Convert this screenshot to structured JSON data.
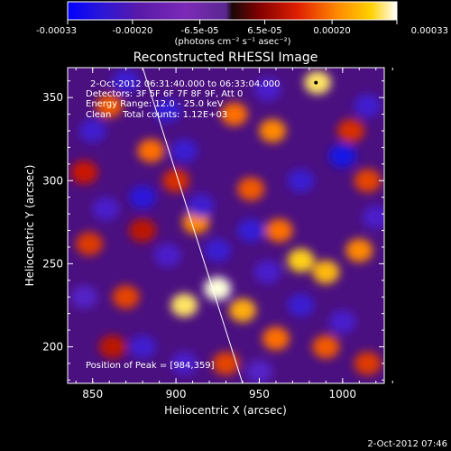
{
  "colorbar": {
    "tick_labels": [
      "-0.00033",
      "-0.00020",
      "-6.5e-05",
      "6.5e-05",
      "0.00020",
      "0.00033"
    ],
    "tick_values": [
      -0.00033,
      -0.0002,
      -6.5e-05,
      6.5e-05,
      0.0002,
      0.00033
    ],
    "range": [
      -0.00033,
      0.00033
    ],
    "units_label": "(photons cm⁻² s⁻¹ asec⁻²)"
  },
  "chart_data": {
    "type": "heatmap",
    "title": "Reconstructed RHESSI Image",
    "xlabel": "Heliocentric X (arcsec)",
    "ylabel": "Heliocentric Y (arcsec)",
    "xlim": [
      835,
      1025
    ],
    "ylim": [
      178,
      368
    ],
    "x_ticks": [
      850,
      900,
      950,
      1000
    ],
    "y_ticks": [
      200,
      250,
      300,
      350
    ],
    "x_tick_labels": [
      "850",
      "900",
      "950",
      "1000"
    ],
    "y_tick_labels": [
      "200",
      "250",
      "300",
      "350"
    ],
    "colormap": "red-temperature",
    "limb_line": [
      [
        880,
        368
      ],
      [
        940,
        178
      ]
    ],
    "peak_position": [
      984,
      359
    ],
    "annotations": [
      "2-Oct-2012 06:31:40.000 to 06:33:04.000",
      "Detectors: 3F 5F 6F 7F 8F 9F, Att 0",
      "Energy Range: 12.0 - 25.0 keV",
      "Clean    Total counts: 1.12E+03",
      "Position of Peak = [984,359]"
    ],
    "blobs": [
      {
        "x": 860,
        "y": 345,
        "v": 0.00018
      },
      {
        "x": 845,
        "y": 305,
        "v": 0.00012
      },
      {
        "x": 848,
        "y": 262,
        "v": 0.00015
      },
      {
        "x": 870,
        "y": 230,
        "v": 0.00016
      },
      {
        "x": 862,
        "y": 200,
        "v": 0.0001
      },
      {
        "x": 885,
        "y": 318,
        "v": 0.0002
      },
      {
        "x": 900,
        "y": 300,
        "v": 0.00014
      },
      {
        "x": 912,
        "y": 275,
        "v": 0.00022
      },
      {
        "x": 905,
        "y": 225,
        "v": 0.0003
      },
      {
        "x": 925,
        "y": 235,
        "v": 0.00033
      },
      {
        "x": 940,
        "y": 222,
        "v": 0.00025
      },
      {
        "x": 930,
        "y": 190,
        "v": 0.00016
      },
      {
        "x": 935,
        "y": 340,
        "v": 0.0002
      },
      {
        "x": 958,
        "y": 330,
        "v": 0.00022
      },
      {
        "x": 945,
        "y": 295,
        "v": 0.00018
      },
      {
        "x": 962,
        "y": 270,
        "v": 0.0002
      },
      {
        "x": 975,
        "y": 252,
        "v": 0.00028
      },
      {
        "x": 990,
        "y": 245,
        "v": 0.00026
      },
      {
        "x": 1010,
        "y": 258,
        "v": 0.00022
      },
      {
        "x": 985,
        "y": 359,
        "v": 0.0003
      },
      {
        "x": 1015,
        "y": 300,
        "v": 0.00016
      },
      {
        "x": 1005,
        "y": 330,
        "v": 0.00014
      },
      {
        "x": 960,
        "y": 205,
        "v": 0.0002
      },
      {
        "x": 990,
        "y": 200,
        "v": 0.00018
      },
      {
        "x": 1015,
        "y": 190,
        "v": 0.00015
      },
      {
        "x": 880,
        "y": 270,
        "v": 0.0001
      },
      {
        "x": 870,
        "y": 360,
        "v": -0.0002
      },
      {
        "x": 850,
        "y": 330,
        "v": -0.00018
      },
      {
        "x": 895,
        "y": 342,
        "v": -0.00022
      },
      {
        "x": 905,
        "y": 318,
        "v": -0.0002
      },
      {
        "x": 880,
        "y": 290,
        "v": -0.00025
      },
      {
        "x": 858,
        "y": 283,
        "v": -0.00016
      },
      {
        "x": 915,
        "y": 285,
        "v": -0.00018
      },
      {
        "x": 895,
        "y": 255,
        "v": -0.00015
      },
      {
        "x": 925,
        "y": 258,
        "v": -0.0002
      },
      {
        "x": 945,
        "y": 270,
        "v": -0.00022
      },
      {
        "x": 955,
        "y": 355,
        "v": -0.00016
      },
      {
        "x": 1000,
        "y": 315,
        "v": -0.00033
      },
      {
        "x": 975,
        "y": 300,
        "v": -0.0002
      },
      {
        "x": 1015,
        "y": 345,
        "v": -0.00018
      },
      {
        "x": 1020,
        "y": 278,
        "v": -0.00015
      },
      {
        "x": 975,
        "y": 225,
        "v": -0.0002
      },
      {
        "x": 955,
        "y": 245,
        "v": -0.00016
      },
      {
        "x": 1000,
        "y": 215,
        "v": -0.00016
      },
      {
        "x": 880,
        "y": 200,
        "v": -0.00018
      },
      {
        "x": 905,
        "y": 190,
        "v": -0.00015
      },
      {
        "x": 950,
        "y": 185,
        "v": -0.00012
      },
      {
        "x": 845,
        "y": 230,
        "v": -0.00012
      }
    ]
  },
  "footer": {
    "timestamp": "2-Oct-2012 07:46"
  }
}
